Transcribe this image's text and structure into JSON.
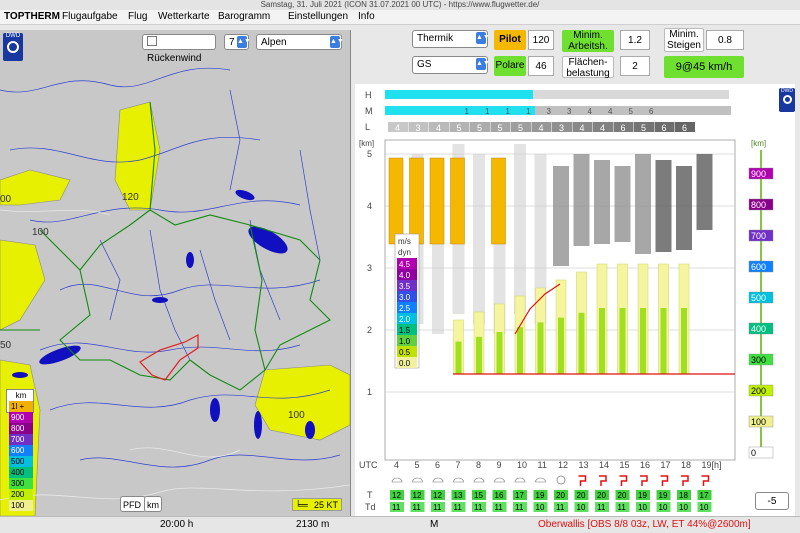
{
  "window": {
    "title": "Samstag, 31. Juli 2021 (ICON 31.07.2021 00 UTC) - https://www.flugwetter.de/"
  },
  "menu": [
    "TOPTHERM",
    "Flugaufgabe",
    "Flug",
    "Wetterkarte",
    "Barogramm",
    "Einstellungen",
    "Info"
  ],
  "map": {
    "dwd_logo": "DWD",
    "rueckenwind_label": "Rückenwind",
    "rueckenwind_checked": false,
    "step_value": "7",
    "region": "Alpen",
    "contour_labels": [
      "120",
      "100",
      "100",
      "00",
      "50"
    ],
    "pfd_label": "PFD",
    "km_label": "km",
    "wind_label": "25 KT",
    "legend_title": "km",
    "legend": [
      {
        "label": "1l +",
        "color": "#f4b000"
      },
      {
        "label": "900",
        "color": "#b000b0"
      },
      {
        "label": "800",
        "color": "#8a008a"
      },
      {
        "label": "700",
        "color": "#7030c8"
      },
      {
        "label": "600",
        "color": "#1080ff"
      },
      {
        "label": "500",
        "color": "#00c0e0"
      },
      {
        "label": "400",
        "color": "#00c080"
      },
      {
        "label": "300",
        "color": "#40e040"
      },
      {
        "label": "200",
        "color": "#c0f000"
      },
      {
        "label": "100",
        "color": "#f0f090"
      }
    ]
  },
  "controls": {
    "mode": "Thermik",
    "glider": "GS",
    "pilot_label": "Pilot",
    "pilot_value": "120",
    "polare_label": "Polare",
    "polare_value": "46",
    "min_arbeit_label": "Minim. Arbeitsh.",
    "min_arbeit_value": "1.2",
    "flaechen_label": "Flächen- belastung",
    "flaechen_value": "2",
    "min_steigen_label": "Minim. Steigen",
    "min_steigen_value": "0.8",
    "speed_label": "9@45 km/h"
  },
  "chart": {
    "dwd_logo": "DWD",
    "cloud_rows": [
      "H",
      "M",
      "L"
    ],
    "l_values": [
      "4",
      "3",
      "4",
      "5",
      "5",
      "5",
      "5",
      "4",
      "3",
      "4",
      "4",
      "6",
      "5",
      "6",
      "6"
    ],
    "m_values": [
      "1",
      "1",
      "1",
      "1",
      "3",
      "3",
      "4",
      "4",
      "5",
      "6"
    ],
    "km_unit": "[km]",
    "km_ticks": [
      "5",
      "4",
      "3",
      "2",
      "1"
    ],
    "utc_label": "UTC",
    "hours": [
      "4",
      "5",
      "6",
      "7",
      "8",
      "9",
      "10",
      "11",
      "12",
      "13",
      "14",
      "15",
      "16",
      "17",
      "18",
      "19[h]"
    ],
    "right_unit": "[km]",
    "right_scale": [
      {
        "label": "900",
        "color": "#b000b0"
      },
      {
        "label": "800",
        "color": "#8a008a"
      },
      {
        "label": "700",
        "color": "#7030c8"
      },
      {
        "label": "600",
        "color": "#1080ff"
      },
      {
        "label": "500",
        "color": "#00c0e0"
      },
      {
        "label": "400",
        "color": "#00c080"
      },
      {
        "label": "300",
        "color": "#40e040"
      },
      {
        "label": "200",
        "color": "#c0f000"
      },
      {
        "label": "100",
        "color": "#f0f090"
      },
      {
        "label": "0",
        "color": "#ffffff"
      }
    ],
    "ms_title": "m/s",
    "ms_subtitle": "dyn",
    "ms_scale": [
      {
        "label": "4.5",
        "color": "#b000b0"
      },
      {
        "label": "4.0",
        "color": "#9000a0"
      },
      {
        "label": "3.5",
        "color": "#7030c8"
      },
      {
        "label": "3.0",
        "color": "#3050e8"
      },
      {
        "label": "2.5",
        "color": "#1080ff"
      },
      {
        "label": "2.0",
        "color": "#00c0e0"
      },
      {
        "label": "1.5",
        "color": "#00c080"
      },
      {
        "label": "1.0",
        "color": "#60d040"
      },
      {
        "label": "0.5",
        "color": "#c0e000"
      },
      {
        "label": "0.0",
        "color": "#f0f0a0"
      }
    ],
    "t_label": "T",
    "td_label": "Td",
    "t_values": [
      "12",
      "12",
      "12",
      "13",
      "15",
      "16",
      "17",
      "19",
      "20",
      "20",
      "20",
      "20",
      "19",
      "19",
      "18",
      "17"
    ],
    "td_values": [
      "11",
      "11",
      "11",
      "11",
      "11",
      "11",
      "11",
      "10",
      "11",
      "10",
      "11",
      "11",
      "10",
      "10",
      "10",
      "10"
    ],
    "offset_value": "-5"
  },
  "status": {
    "time": "20:00 h",
    "height": "2130 m",
    "mode": "M",
    "location_info": "Oberwallis [OBS 8/8 03z, LW, ET  44%@2600m]"
  }
}
